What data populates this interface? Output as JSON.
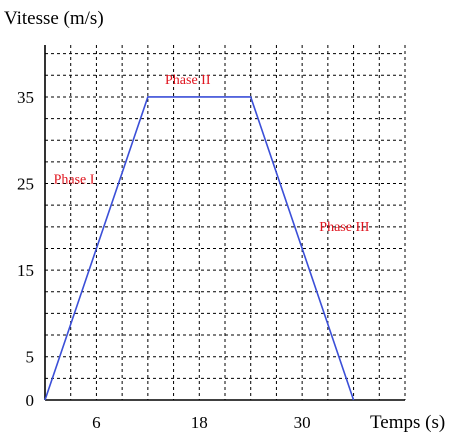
{
  "chart_data": {
    "type": "line",
    "ylabel": "Vitesse (m/s)",
    "xlabel": "Temps (s)",
    "x_ticks": [
      6,
      18,
      30
    ],
    "y_ticks": [
      0,
      5,
      15,
      25,
      35
    ],
    "xlim": [
      0,
      42
    ],
    "ylim": [
      0,
      41
    ],
    "grid": true,
    "x_grid_step": 3,
    "y_grid_step": 2.5,
    "series": [
      {
        "color": "#3b4fd8",
        "x": [
          0,
          12,
          24,
          36
        ],
        "y": [
          0,
          35,
          35,
          0
        ]
      }
    ],
    "annotations": [
      {
        "text": "Phase I",
        "x": 1,
        "y": 25,
        "color": "#e0141e"
      },
      {
        "text": "Phase II",
        "x": 14,
        "y": 36.5,
        "color": "#e0141e"
      },
      {
        "text": "Phase III",
        "x": 32,
        "y": 19.5,
        "color": "#e0141e"
      }
    ]
  }
}
